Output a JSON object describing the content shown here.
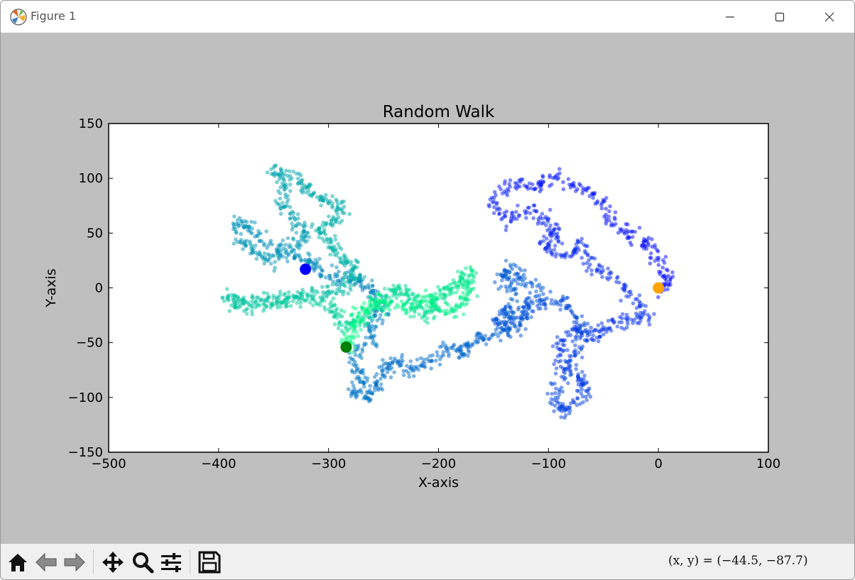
{
  "window": {
    "title": "Figure 1",
    "icons": {
      "app": "matplotlib-logo-icon",
      "minimize": "minimize-icon",
      "maximize": "maximize-icon",
      "close": "close-icon"
    }
  },
  "toolbar": {
    "buttons": [
      {
        "name": "home-button",
        "icon": "home-icon"
      },
      {
        "name": "back-button",
        "icon": "arrow-left-icon"
      },
      {
        "name": "forward-button",
        "icon": "arrow-right-icon"
      },
      {
        "name": "pan-button",
        "icon": "move-icon"
      },
      {
        "name": "zoom-button",
        "icon": "magnifier-icon"
      },
      {
        "name": "configure-subplots-button",
        "icon": "sliders-icon"
      },
      {
        "name": "save-button",
        "icon": "floppy-disk-icon"
      }
    ],
    "coordinates": "(x, y) = (−44.5, −87.7)"
  },
  "chart_data": {
    "type": "scatter",
    "title": "Random Walk",
    "xlabel": "X-axis",
    "ylabel": "Y-axis",
    "xlim": [
      -500,
      100
    ],
    "ylim": [
      -150,
      150
    ],
    "xticks": [
      -500,
      -400,
      -300,
      -200,
      -100,
      0,
      100
    ],
    "yticks": [
      -150,
      -100,
      -50,
      0,
      50,
      100,
      150
    ],
    "grid": false,
    "colormap": "winter (blue at start, green at end)",
    "point_alpha": 0.5,
    "walk_start": {
      "x": 0,
      "y": 0
    },
    "walk_end": {
      "x": -284,
      "y": -54
    },
    "path": [
      [
        0,
        0
      ],
      [
        10,
        3
      ],
      [
        4,
        20
      ],
      [
        -8,
        38
      ],
      [
        -22,
        48
      ],
      [
        -40,
        55
      ],
      [
        -52,
        80
      ],
      [
        -70,
        90
      ],
      [
        -95,
        100
      ],
      [
        -110,
        92
      ],
      [
        -130,
        95
      ],
      [
        -150,
        80
      ],
      [
        -140,
        60
      ],
      [
        -120,
        72
      ],
      [
        -100,
        60
      ],
      [
        -92,
        48
      ],
      [
        -105,
        38
      ],
      [
        -85,
        30
      ],
      [
        -70,
        40
      ],
      [
        -60,
        20
      ],
      [
        -40,
        10
      ],
      [
        -20,
        -10
      ],
      [
        -10,
        -28
      ],
      [
        -30,
        -30
      ],
      [
        -48,
        -35
      ],
      [
        -60,
        -45
      ],
      [
        -72,
        -40
      ],
      [
        -90,
        -48
      ],
      [
        -88,
        -70
      ],
      [
        -70,
        -80
      ],
      [
        -66,
        -92
      ],
      [
        -78,
        -110
      ],
      [
        -92,
        -112
      ],
      [
        -96,
        -95
      ],
      [
        -80,
        -70
      ],
      [
        -70,
        -50
      ],
      [
        -72,
        -30
      ],
      [
        -82,
        -15
      ],
      [
        -100,
        -12
      ],
      [
        -120,
        -15
      ],
      [
        -128,
        -28
      ],
      [
        -140,
        -22
      ],
      [
        -150,
        -30
      ],
      [
        -130,
        -40
      ],
      [
        -120,
        -25
      ],
      [
        -110,
        0
      ],
      [
        -125,
        10
      ],
      [
        -135,
        18
      ],
      [
        -145,
        10
      ],
      [
        -130,
        -5
      ],
      [
        -140,
        -42
      ],
      [
        -160,
        -45
      ],
      [
        -172,
        -52
      ],
      [
        -180,
        -60
      ],
      [
        -195,
        -55
      ],
      [
        -210,
        -70
      ],
      [
        -225,
        -75
      ],
      [
        -238,
        -68
      ],
      [
        -250,
        -75
      ],
      [
        -255,
        -90
      ],
      [
        -265,
        -100
      ],
      [
        -278,
        -95
      ],
      [
        -268,
        -80
      ],
      [
        -278,
        -65
      ],
      [
        -262,
        -50
      ],
      [
        -262,
        -35
      ],
      [
        -250,
        -20
      ],
      [
        -260,
        -5
      ],
      [
        -268,
        5
      ],
      [
        -280,
        10
      ],
      [
        -298,
        8
      ],
      [
        -312,
        20
      ],
      [
        -320,
        26
      ],
      [
        -338,
        30
      ],
      [
        -352,
        40
      ],
      [
        -372,
        55
      ],
      [
        -384,
        60
      ],
      [
        -378,
        40
      ],
      [
        -362,
        30
      ],
      [
        -350,
        25
      ],
      [
        -332,
        40
      ],
      [
        -320,
        50
      ],
      [
        -330,
        60
      ],
      [
        -345,
        75
      ],
      [
        -340,
        95
      ],
      [
        -350,
        110
      ],
      [
        -330,
        100
      ],
      [
        -320,
        90
      ],
      [
        -305,
        80
      ],
      [
        -288,
        75
      ],
      [
        -295,
        60
      ],
      [
        -310,
        55
      ],
      [
        -300,
        40
      ],
      [
        -290,
        30
      ],
      [
        -280,
        22
      ],
      [
        -275,
        10
      ],
      [
        -285,
        0
      ],
      [
        -300,
        -5
      ],
      [
        -320,
        -5
      ],
      [
        -338,
        -8
      ],
      [
        -360,
        -12
      ],
      [
        -378,
        -12
      ],
      [
        -392,
        -8
      ],
      [
        -380,
        -18
      ],
      [
        -360,
        -15
      ],
      [
        -340,
        -12
      ],
      [
        -320,
        -10
      ],
      [
        -300,
        -15
      ],
      [
        -290,
        -28
      ],
      [
        -282,
        -35
      ],
      [
        -270,
        -30
      ],
      [
        -258,
        -20
      ],
      [
        -248,
        -10
      ],
      [
        -238,
        0
      ],
      [
        -228,
        -5
      ],
      [
        -222,
        -18
      ],
      [
        -212,
        -25
      ],
      [
        -204,
        -15
      ],
      [
        -196,
        -5
      ],
      [
        -185,
        0
      ],
      [
        -178,
        10
      ],
      [
        -170,
        15
      ],
      [
        -172,
        -5
      ],
      [
        -180,
        -15
      ],
      [
        -192,
        -22
      ],
      [
        -205,
        -12
      ],
      [
        -215,
        -10
      ],
      [
        -228,
        -18
      ],
      [
        -245,
        -15
      ],
      [
        -258,
        -10
      ],
      [
        -268,
        -20
      ],
      [
        -275,
        -30
      ],
      [
        -282,
        -45
      ],
      [
        -284,
        -54
      ]
    ]
  }
}
